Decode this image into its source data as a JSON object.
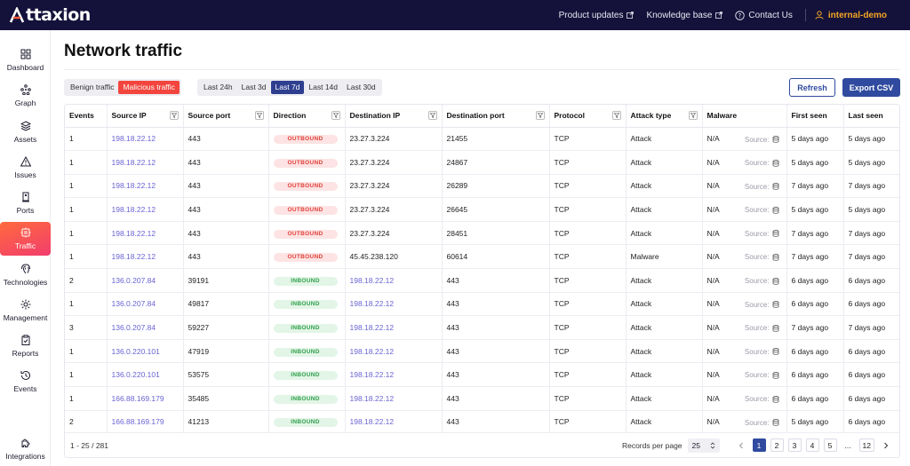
{
  "app": {
    "name": "ttaxion"
  },
  "topnav": {
    "links": [
      "Product updates",
      "Knowledge base"
    ],
    "contact": "Contact Us",
    "user": "internal-demo"
  },
  "sidebar": {
    "items": [
      {
        "label": "Dashboard",
        "icon": "dashboard-icon"
      },
      {
        "label": "Graph",
        "icon": "graph-icon"
      },
      {
        "label": "Assets",
        "icon": "assets-icon"
      },
      {
        "label": "Issues",
        "icon": "issues-icon"
      },
      {
        "label": "Ports",
        "icon": "ports-icon"
      },
      {
        "label": "Traffic",
        "icon": "traffic-icon",
        "active": true
      },
      {
        "label": "Technologies",
        "icon": "technologies-icon"
      },
      {
        "label": "Management",
        "icon": "management-icon"
      },
      {
        "label": "Reports",
        "icon": "reports-icon"
      },
      {
        "label": "Events",
        "icon": "events-icon"
      },
      {
        "label": "Integrations",
        "icon": "integrations-icon"
      }
    ]
  },
  "page": {
    "title": "Network traffic"
  },
  "traffic_filter": {
    "options": [
      "Benign traffic",
      "Malicious traffic"
    ],
    "selected": "Malicious traffic"
  },
  "time_filter": {
    "options": [
      "Last 24h",
      "Last 3d",
      "Last 7d",
      "Last 14d",
      "Last 30d"
    ],
    "selected": "Last 7d"
  },
  "actions": {
    "refresh": "Refresh",
    "export": "Export CSV"
  },
  "table": {
    "columns": [
      "Events",
      "Source IP",
      "Source port",
      "Direction",
      "Destination IP",
      "Destination port",
      "Protocol",
      "Attack type",
      "Malware",
      "First seen",
      "Last seen"
    ],
    "source_label": "Source:",
    "rows": [
      {
        "events": "1",
        "src_ip": "198.18.22.12",
        "src_port": "443",
        "direction": "OUTBOUND",
        "dst_ip": "23.27.3.224",
        "dst_port": "21455",
        "protocol": "TCP",
        "attack": "Attack",
        "malware": "N/A",
        "first": "5 days ago",
        "last": "5 days ago"
      },
      {
        "events": "1",
        "src_ip": "198.18.22.12",
        "src_port": "443",
        "direction": "OUTBOUND",
        "dst_ip": "23.27.3.224",
        "dst_port": "24867",
        "protocol": "TCP",
        "attack": "Attack",
        "malware": "N/A",
        "first": "5 days ago",
        "last": "5 days ago"
      },
      {
        "events": "1",
        "src_ip": "198.18.22.12",
        "src_port": "443",
        "direction": "OUTBOUND",
        "dst_ip": "23.27.3.224",
        "dst_port": "26289",
        "protocol": "TCP",
        "attack": "Attack",
        "malware": "N/A",
        "first": "7 days ago",
        "last": "7 days ago"
      },
      {
        "events": "1",
        "src_ip": "198.18.22.12",
        "src_port": "443",
        "direction": "OUTBOUND",
        "dst_ip": "23.27.3.224",
        "dst_port": "26645",
        "protocol": "TCP",
        "attack": "Attack",
        "malware": "N/A",
        "first": "5 days ago",
        "last": "5 days ago"
      },
      {
        "events": "1",
        "src_ip": "198.18.22.12",
        "src_port": "443",
        "direction": "OUTBOUND",
        "dst_ip": "23.27.3.224",
        "dst_port": "28451",
        "protocol": "TCP",
        "attack": "Attack",
        "malware": "N/A",
        "first": "7 days ago",
        "last": "7 days ago"
      },
      {
        "events": "1",
        "src_ip": "198.18.22.12",
        "src_port": "443",
        "direction": "OUTBOUND",
        "dst_ip": "45.45.238.120",
        "dst_port": "60614",
        "protocol": "TCP",
        "attack": "Malware",
        "malware": "N/A",
        "first": "7 days ago",
        "last": "7 days ago"
      },
      {
        "events": "2",
        "src_ip": "136.0.207.84",
        "src_port": "39191",
        "direction": "INBOUND",
        "dst_ip": "198.18.22.12",
        "dst_port": "443",
        "protocol": "TCP",
        "attack": "Attack",
        "malware": "N/A",
        "first": "6 days ago",
        "last": "6 days ago"
      },
      {
        "events": "1",
        "src_ip": "136.0.207.84",
        "src_port": "49817",
        "direction": "INBOUND",
        "dst_ip": "198.18.22.12",
        "dst_port": "443",
        "protocol": "TCP",
        "attack": "Attack",
        "malware": "N/A",
        "first": "6 days ago",
        "last": "6 days ago"
      },
      {
        "events": "3",
        "src_ip": "136.0.207.84",
        "src_port": "59227",
        "direction": "INBOUND",
        "dst_ip": "198.18.22.12",
        "dst_port": "443",
        "protocol": "TCP",
        "attack": "Attack",
        "malware": "N/A",
        "first": "7 days ago",
        "last": "7 days ago"
      },
      {
        "events": "1",
        "src_ip": "136.0.220.101",
        "src_port": "47919",
        "direction": "INBOUND",
        "dst_ip": "198.18.22.12",
        "dst_port": "443",
        "protocol": "TCP",
        "attack": "Attack",
        "malware": "N/A",
        "first": "6 days ago",
        "last": "6 days ago"
      },
      {
        "events": "1",
        "src_ip": "136.0.220.101",
        "src_port": "53575",
        "direction": "INBOUND",
        "dst_ip": "198.18.22.12",
        "dst_port": "443",
        "protocol": "TCP",
        "attack": "Attack",
        "malware": "N/A",
        "first": "6 days ago",
        "last": "6 days ago"
      },
      {
        "events": "1",
        "src_ip": "166.88.169.179",
        "src_port": "35485",
        "direction": "INBOUND",
        "dst_ip": "198.18.22.12",
        "dst_port": "443",
        "protocol": "TCP",
        "attack": "Attack",
        "malware": "N/A",
        "first": "6 days ago",
        "last": "6 days ago"
      },
      {
        "events": "2",
        "src_ip": "166.88.169.179",
        "src_port": "41213",
        "direction": "INBOUND",
        "dst_ip": "198.18.22.12",
        "dst_port": "443",
        "protocol": "TCP",
        "attack": "Attack",
        "malware": "N/A",
        "first": "5 days ago",
        "last": "6 days ago"
      }
    ]
  },
  "footer": {
    "range": "1 - 25 / 281",
    "records_per_page_label": "Records per page",
    "records_per_page": "25",
    "pages": [
      "1",
      "2",
      "3",
      "4",
      "5",
      "...",
      "12"
    ],
    "current_page": "1"
  },
  "colors": {
    "topbar": "#14123a",
    "accent_blue": "#2f4a9f",
    "malicious_red": "#f2453d",
    "user_orange": "#f5a623",
    "outbound": "#e0403a",
    "inbound": "#2f9f4b"
  }
}
